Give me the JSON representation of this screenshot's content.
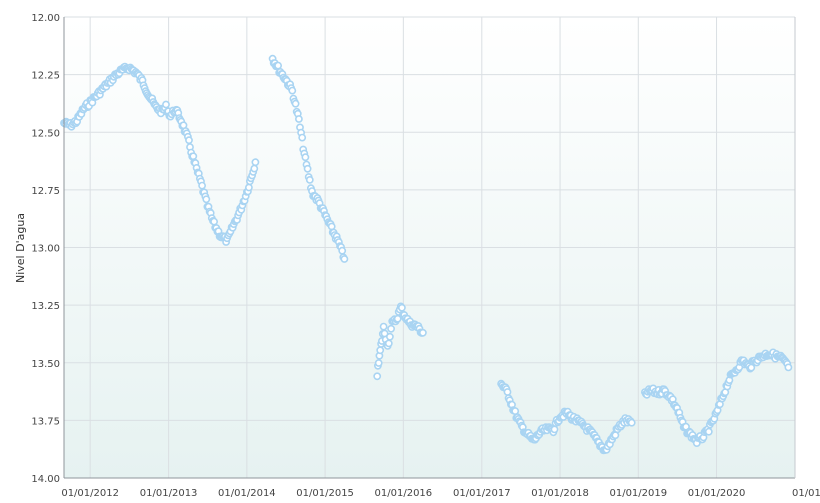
{
  "chart_data": {
    "type": "scatter",
    "title": "",
    "xlabel": "",
    "ylabel": "Nivel D'agua",
    "y_reversed": true,
    "ylim": [
      12.0,
      14.0
    ],
    "xlim": [
      "2011-09-01",
      "2021-01-01"
    ],
    "grid": true,
    "legend": "none",
    "y_ticks": [
      "12.00",
      "12.25",
      "12.50",
      "12.75",
      "13.00",
      "13.25",
      "13.50",
      "13.75",
      "14.00"
    ],
    "x_ticks": [
      {
        "date": "2012-01-01",
        "label": "01/01/2012"
      },
      {
        "date": "2013-01-01",
        "label": "01/01/2013"
      },
      {
        "date": "2014-01-01",
        "label": "01/01/2014"
      },
      {
        "date": "2015-01-01",
        "label": "01/01/2015"
      },
      {
        "date": "2016-01-01",
        "label": "01/01/2016"
      },
      {
        "date": "2017-01-01",
        "label": "01/01/2017"
      },
      {
        "date": "2018-01-01",
        "label": "01/01/2018"
      },
      {
        "date": "2019-01-01",
        "label": "01/01/2019"
      },
      {
        "date": "2020-01-01",
        "label": "01/01/2020"
      },
      {
        "date": "2021-01-01",
        "label": "01/01/"
      }
    ],
    "colors": {
      "point_fill": "#ffffff",
      "point_stroke": "#a9d4f2",
      "grid": "#dadfe3",
      "axis": "#8f959b",
      "bg_top": "#ffffff",
      "bg_bottom": "#e6f2f1"
    },
    "series": [
      {
        "points": [
          [
            "2011-09-01",
            12.46
          ],
          [
            "2011-10-01",
            12.47
          ],
          [
            "2011-11-01",
            12.45
          ],
          [
            "2011-12-01",
            12.4
          ],
          [
            "2012-01-01",
            12.37
          ],
          [
            "2012-02-01",
            12.34
          ],
          [
            "2012-03-01",
            12.31
          ],
          [
            "2012-04-01",
            12.28
          ],
          [
            "2012-05-01",
            12.25
          ],
          [
            "2012-06-01",
            12.23
          ],
          [
            "2012-07-01",
            12.22
          ],
          [
            "2012-08-01",
            12.24
          ],
          [
            "2012-09-01",
            12.28
          ],
          [
            "2012-10-01",
            12.34
          ],
          [
            "2012-11-01",
            12.39
          ],
          [
            "2012-12-01",
            12.41
          ],
          [
            "2012-12-20",
            12.39
          ],
          [
            "2013-01-10",
            12.43
          ],
          [
            "2013-02-01",
            12.4
          ],
          [
            "2013-03-01",
            12.45
          ],
          [
            "2013-04-01",
            12.53
          ],
          [
            "2013-05-01",
            12.63
          ],
          [
            "2013-06-01",
            12.72
          ],
          [
            "2013-07-01",
            12.82
          ],
          [
            "2013-08-01",
            12.9
          ],
          [
            "2013-09-01",
            12.95
          ],
          [
            "2013-10-01",
            12.97
          ],
          [
            "2013-11-01",
            12.9
          ],
          [
            "2013-12-01",
            12.84
          ],
          [
            "2014-01-01",
            12.76
          ],
          [
            "2014-01-20",
            12.7
          ],
          [
            "2014-02-10",
            12.63
          ]
        ]
      },
      {
        "points": [
          [
            "2014-05-01",
            12.18
          ],
          [
            "2014-06-01",
            12.23
          ],
          [
            "2014-07-01",
            12.27
          ],
          [
            "2014-08-01",
            12.32
          ],
          [
            "2014-09-01",
            12.45
          ],
          [
            "2014-10-01",
            12.62
          ],
          [
            "2014-11-01",
            12.76
          ],
          [
            "2014-12-01",
            12.8
          ],
          [
            "2015-01-01",
            12.86
          ],
          [
            "2015-02-01",
            12.92
          ],
          [
            "2015-03-01",
            12.97
          ],
          [
            "2015-04-01",
            13.05
          ]
        ]
      },
      {
        "points": [
          [
            "2015-09-01",
            13.55
          ],
          [
            "2015-09-15",
            13.45
          ],
          [
            "2015-10-01",
            13.35
          ],
          [
            "2015-10-20",
            13.43
          ],
          [
            "2015-11-10",
            13.33
          ],
          [
            "2015-12-01",
            13.31
          ],
          [
            "2015-12-20",
            13.26
          ],
          [
            "2016-01-10",
            13.3
          ],
          [
            "2016-02-01",
            13.33
          ],
          [
            "2016-03-01",
            13.34
          ],
          [
            "2016-04-01",
            13.37
          ]
        ]
      },
      {
        "points": [
          [
            "2017-04-01",
            13.59
          ],
          [
            "2017-05-01",
            13.63
          ],
          [
            "2017-06-01",
            13.71
          ],
          [
            "2017-07-01",
            13.77
          ],
          [
            "2017-08-01",
            13.81
          ],
          [
            "2017-09-01",
            13.84
          ],
          [
            "2017-10-01",
            13.8
          ],
          [
            "2017-11-01",
            13.79
          ],
          [
            "2017-12-01",
            13.79
          ],
          [
            "2018-01-01",
            13.73
          ],
          [
            "2018-02-01",
            13.72
          ],
          [
            "2018-03-01",
            13.74
          ],
          [
            "2018-04-01",
            13.76
          ],
          [
            "2018-05-01",
            13.78
          ],
          [
            "2018-06-01",
            13.81
          ],
          [
            "2018-07-01",
            13.85
          ],
          [
            "2018-08-01",
            13.88
          ],
          [
            "2018-09-01",
            13.83
          ],
          [
            "2018-10-01",
            13.78
          ],
          [
            "2018-11-01",
            13.75
          ],
          [
            "2018-12-01",
            13.76
          ]
        ]
      },
      {
        "points": [
          [
            "2019-02-01",
            13.64
          ],
          [
            "2019-03-01",
            13.62
          ],
          [
            "2019-04-01",
            13.63
          ],
          [
            "2019-05-01",
            13.62
          ],
          [
            "2019-06-01",
            13.65
          ],
          [
            "2019-07-01",
            13.7
          ],
          [
            "2019-08-01",
            13.78
          ],
          [
            "2019-09-01",
            13.81
          ],
          [
            "2019-10-01",
            13.84
          ],
          [
            "2019-11-01",
            13.82
          ],
          [
            "2019-12-01",
            13.78
          ],
          [
            "2020-01-01",
            13.72
          ],
          [
            "2020-02-01",
            13.64
          ],
          [
            "2020-03-01",
            13.57
          ],
          [
            "2020-04-01",
            13.53
          ],
          [
            "2020-05-01",
            13.49
          ],
          [
            "2020-06-01",
            13.52
          ],
          [
            "2020-07-01",
            13.49
          ],
          [
            "2020-08-01",
            13.47
          ],
          [
            "2020-09-01",
            13.46
          ],
          [
            "2020-10-01",
            13.47
          ],
          [
            "2020-11-01",
            13.48
          ],
          [
            "2020-12-01",
            13.52
          ]
        ]
      }
    ]
  }
}
